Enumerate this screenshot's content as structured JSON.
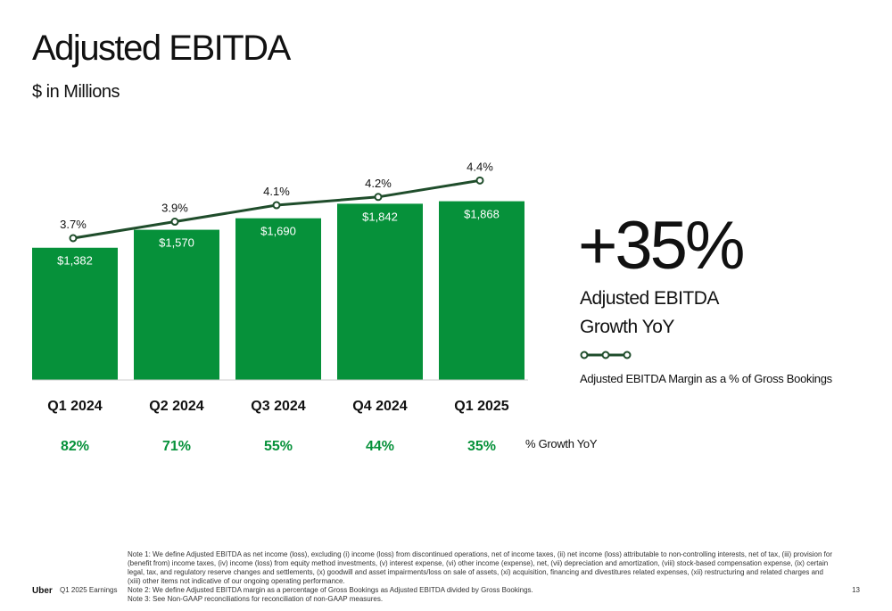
{
  "header": {
    "title": "Adjusted EBITDA",
    "subtitle": "$ in Millions"
  },
  "chart_data": {
    "type": "bar",
    "categories": [
      "Q1 2024",
      "Q2 2024",
      "Q3 2024",
      "Q4 2024",
      "Q1 2025"
    ],
    "values": [
      1382,
      1570,
      1690,
      1842,
      1868
    ],
    "value_labels": [
      "$1,382",
      "$1,570",
      "$1,690",
      "$1,842",
      "$1,868"
    ],
    "bar_color": "#06913a",
    "line_series": {
      "name": "Adjusted EBITDA Margin as a % of Gross Bookings",
      "values": [
        3.7,
        3.9,
        4.1,
        4.2,
        4.4
      ],
      "labels": [
        "3.7%",
        "3.9%",
        "4.1%",
        "4.2%",
        "4.4%"
      ],
      "color": "#1f4d2b"
    },
    "growth_row": {
      "label": "% Growth YoY",
      "values": [
        "82%",
        "71%",
        "55%",
        "44%",
        "35%"
      ],
      "color": "#06913a"
    },
    "ylim": [
      0,
      2200
    ],
    "grid": false
  },
  "highlight": {
    "value": "+35%",
    "label_line1": "Adjusted EBITDA",
    "label_line2": "Growth YoY",
    "legend_label": "Adjusted EBITDA Margin as a % of Gross Bookings"
  },
  "notes": [
    "Note 1: We define Adjusted EBITDA as net income (loss), excluding (i) income (loss) from discontinued operations, net of income taxes, (ii) net income (loss) attributable to non-controlling interests, net of tax, (iii) provision for (benefit from) income taxes, (iv) income (loss) from equity method investments, (v) interest expense, (vi) other income (expense), net, (vii) depreciation and amortization, (viii) stock-based compensation expense, (ix) certain legal, tax, and regulatory reserve changes and settlements, (x) goodwill and asset impairments/loss on sale of assets, (xi) acquisition, financing and divestitures related expenses, (xii) restructuring and related charges and (xiii) other items not indicative of our ongoing operating performance.",
    "Note 2: We define Adjusted EBITDA margin as a percentage of Gross Bookings as Adjusted EBITDA divided by Gross Bookings.",
    "Note 3: See Non-GAAP reconciliations for reconciliation of non-GAAP measures."
  ],
  "footer": {
    "brand": "Uber",
    "document": "Q1 2025 Earnings",
    "page": "13"
  }
}
